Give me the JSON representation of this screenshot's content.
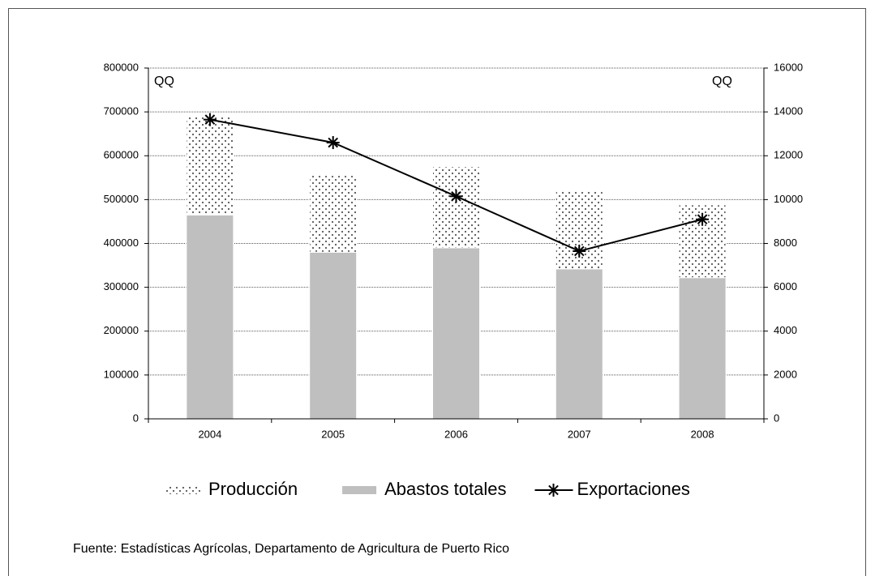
{
  "chart_data": {
    "type": "bar",
    "y_label": "QQ",
    "y2_label": "QQ",
    "categories": [
      "2004",
      "2005",
      "2006",
      "2007",
      "2008"
    ],
    "stacked": true,
    "series": [
      {
        "name": "Abastos totales",
        "type": "bar",
        "color": "#bfbfbf",
        "values": [
          465000,
          380000,
          390000,
          342000,
          322000
        ]
      },
      {
        "name": "Producción",
        "type": "bar",
        "pattern": "dots",
        "color": "#555555",
        "values": [
          225000,
          175000,
          185000,
          178000,
          166000
        ]
      },
      {
        "name": "Exportaciones",
        "type": "line",
        "axis": "y2",
        "marker": "star",
        "color": "#000000",
        "values": [
          13650,
          12600,
          10150,
          7650,
          9100
        ]
      }
    ],
    "legend_order": [
      1,
      0,
      2
    ],
    "ylim": [
      0,
      800000
    ],
    "yticks": [
      0,
      100000,
      200000,
      300000,
      400000,
      500000,
      600000,
      700000,
      800000
    ],
    "y2lim": [
      0,
      16000
    ],
    "y2ticks": [
      0,
      2000,
      4000,
      6000,
      8000,
      10000,
      12000,
      14000,
      16000
    ],
    "grid": true,
    "source": "Fuente: Estadísticas Agrícolas, Departamento de Agricultura de Puerto Rico"
  }
}
